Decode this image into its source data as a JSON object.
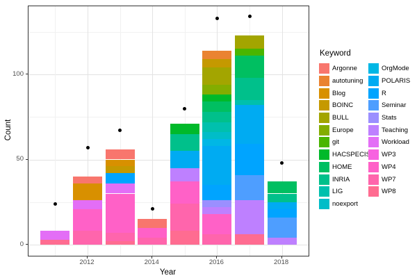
{
  "axes": {
    "x": {
      "label": "Year",
      "ticks": [
        {
          "label": "2012",
          "year": 2012
        },
        {
          "label": "2014",
          "year": 2014
        },
        {
          "label": "2016",
          "year": 2016
        },
        {
          "label": "2018",
          "year": 2018
        }
      ]
    },
    "y": {
      "label": "Count",
      "ticks": [
        {
          "label": "0",
          "value": 0
        },
        {
          "label": "50",
          "value": 50
        },
        {
          "label": "100",
          "value": 100
        }
      ]
    }
  },
  "legend": {
    "title": "Keyword",
    "items": [
      {
        "label": "Argonne",
        "color": "#F8766D"
      },
      {
        "label": "autotuning",
        "color": "#EA8331"
      },
      {
        "label": "Blog",
        "color": "#D89000"
      },
      {
        "label": "BOINC",
        "color": "#C59900"
      },
      {
        "label": "BULL",
        "color": "#A3A500"
      },
      {
        "label": "Europe",
        "color": "#83AD00"
      },
      {
        "label": "git",
        "color": "#49B500"
      },
      {
        "label": "HACSPECIS",
        "color": "#00B92A"
      },
      {
        "label": "HOME",
        "color": "#00BF61"
      },
      {
        "label": "INRIA",
        "color": "#00C08B"
      },
      {
        "label": "LIG",
        "color": "#00C0AD"
      },
      {
        "label": "noexport",
        "color": "#00BDC8"
      },
      {
        "label": "OrgMode",
        "color": "#00B7E5"
      },
      {
        "label": "POLARIS",
        "color": "#00ABF2"
      },
      {
        "label": "R",
        "color": "#00A4FF"
      },
      {
        "label": "Seminar",
        "color": "#4E9EFF"
      },
      {
        "label": "Stats",
        "color": "#9B8FFF"
      },
      {
        "label": "Teaching",
        "color": "#BE80FF"
      },
      {
        "label": "Workload",
        "color": "#E36EF6"
      },
      {
        "label": "WP3",
        "color": "#F763E0"
      },
      {
        "label": "WP4",
        "color": "#FF61C7"
      },
      {
        "label": "WP7",
        "color": "#FF65AC"
      },
      {
        "label": "WP8",
        "color": "#FF6C91"
      }
    ]
  },
  "chart_data": {
    "type": "bar",
    "stacked": true,
    "points_overlay": true,
    "title": "",
    "xlabel": "Year",
    "ylabel": "Count",
    "ylim": [
      0,
      140
    ],
    "grid": {
      "major_y": [
        0,
        50,
        100
      ],
      "minor_y": [
        25,
        75,
        125
      ],
      "major_x": [
        2012,
        2014,
        2016,
        2018
      ],
      "minor_x": [
        2011,
        2013,
        2015,
        2017
      ]
    },
    "bars": [
      {
        "year": 2011,
        "total": 8,
        "segments": [
          {
            "keyword": "WP8",
            "value": 3
          },
          {
            "keyword": "Workload",
            "value": 5
          }
        ]
      },
      {
        "year": 2012,
        "total": 40,
        "segments": [
          {
            "keyword": "WP7",
            "value": 8
          },
          {
            "keyword": "WP4",
            "value": 13
          },
          {
            "keyword": "Workload",
            "value": 5
          },
          {
            "keyword": "Blog",
            "value": 10
          },
          {
            "keyword": "Argonne",
            "value": 4
          }
        ]
      },
      {
        "year": 2013,
        "total": 56,
        "segments": [
          {
            "keyword": "WP8",
            "value": 2
          },
          {
            "keyword": "WP7",
            "value": 5
          },
          {
            "keyword": "WP4",
            "value": 23
          },
          {
            "keyword": "Workload",
            "value": 6
          },
          {
            "keyword": "R",
            "value": 6
          },
          {
            "keyword": "BOINC",
            "value": 4
          },
          {
            "keyword": "Blog",
            "value": 4
          },
          {
            "keyword": "Argonne",
            "value": 6
          }
        ]
      },
      {
        "year": 2014,
        "total": 15,
        "segments": [
          {
            "keyword": "WP7",
            "value": 4
          },
          {
            "keyword": "WP4",
            "value": 6
          },
          {
            "keyword": "Argonne",
            "value": 5
          }
        ]
      },
      {
        "year": 2015,
        "total": 71,
        "segments": [
          {
            "keyword": "WP8",
            "value": 8
          },
          {
            "keyword": "WP7",
            "value": 16
          },
          {
            "keyword": "WP4",
            "value": 13
          },
          {
            "keyword": "Teaching",
            "value": 8
          },
          {
            "keyword": "POLARIS",
            "value": 10
          },
          {
            "keyword": "INRIA",
            "value": 10
          },
          {
            "keyword": "HACSPECIS",
            "value": 6
          }
        ]
      },
      {
        "year": 2016,
        "total": 114,
        "segments": [
          {
            "keyword": "WP7",
            "value": 6
          },
          {
            "keyword": "WP4",
            "value": 12
          },
          {
            "keyword": "Teaching",
            "value": 4
          },
          {
            "keyword": "Stats",
            "value": 4
          },
          {
            "keyword": "R",
            "value": 9
          },
          {
            "keyword": "POLARIS",
            "value": 23
          },
          {
            "keyword": "OrgMode",
            "value": 4
          },
          {
            "keyword": "noexport",
            "value": 4
          },
          {
            "keyword": "LIG",
            "value": 6
          },
          {
            "keyword": "INRIA",
            "value": 6
          },
          {
            "keyword": "HOME",
            "value": 6
          },
          {
            "keyword": "HACSPECIS",
            "value": 4
          },
          {
            "keyword": "Europe",
            "value": 6
          },
          {
            "keyword": "BULL",
            "value": 10
          },
          {
            "keyword": "BOINC",
            "value": 5
          },
          {
            "keyword": "autotuning",
            "value": 5
          }
        ]
      },
      {
        "year": 2017,
        "total": 123,
        "segments": [
          {
            "keyword": "WP8",
            "value": 6
          },
          {
            "keyword": "Teaching",
            "value": 20
          },
          {
            "keyword": "Seminar",
            "value": 15
          },
          {
            "keyword": "R",
            "value": 18
          },
          {
            "keyword": "POLARIS",
            "value": 23
          },
          {
            "keyword": "LIG",
            "value": 3
          },
          {
            "keyword": "INRIA",
            "value": 13
          },
          {
            "keyword": "HOME",
            "value": 13
          },
          {
            "keyword": "git",
            "value": 4
          },
          {
            "keyword": "BULL",
            "value": 8
          }
        ]
      },
      {
        "year": 2018,
        "total": 37,
        "segments": [
          {
            "keyword": "Teaching",
            "value": 4
          },
          {
            "keyword": "Seminar",
            "value": 12
          },
          {
            "keyword": "R",
            "value": 5
          },
          {
            "keyword": "POLARIS",
            "value": 4
          },
          {
            "keyword": "INRIA",
            "value": 5
          },
          {
            "keyword": "HOME",
            "value": 7
          }
        ]
      },
      {
        "year": 2011,
        "comment": ""
      }
    ],
    "points": [
      {
        "year": 2011,
        "value": 24
      },
      {
        "year": 2012,
        "value": 57
      },
      {
        "year": 2013,
        "value": 67
      },
      {
        "year": 2014,
        "value": 21
      },
      {
        "year": 2015,
        "value": 80
      },
      {
        "year": 2016,
        "value": 133
      },
      {
        "year": 2017,
        "value": 134
      },
      {
        "year": 2018,
        "value": 48
      }
    ]
  }
}
